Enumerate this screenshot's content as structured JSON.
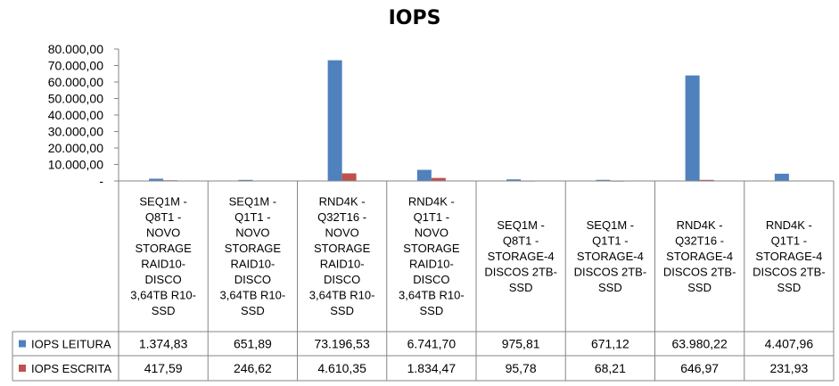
{
  "chart_data": {
    "type": "bar",
    "title": "IOPS",
    "categories": [
      [
        "SEQ1M -",
        "Q8T1 -",
        "NOVO",
        "STORAGE",
        "RAID10-",
        "DISCO",
        "3,64TB R10-",
        "SSD"
      ],
      [
        "SEQ1M -",
        "Q1T1 -",
        "NOVO",
        "STORAGE",
        "RAID10-",
        "DISCO",
        "3,64TB R10-",
        "SSD"
      ],
      [
        "RND4K -",
        "Q32T16 -",
        "NOVO",
        "STORAGE",
        "RAID10-",
        "DISCO",
        "3,64TB R10-",
        "SSD"
      ],
      [
        "RND4K -",
        "Q1T1 -",
        "NOVO",
        "STORAGE",
        "RAID10-",
        "DISCO",
        "3,64TB R10-",
        "SSD"
      ],
      [
        "SEQ1M -",
        "Q8T1 -",
        "STORAGE-4",
        "DISCOS 2TB-",
        "SSD"
      ],
      [
        "SEQ1M -",
        "Q1T1 -",
        "STORAGE-4",
        "DISCOS 2TB-",
        "SSD"
      ],
      [
        "RND4K -",
        "Q32T16 -",
        "STORAGE-4",
        "DISCOS 2TB-",
        "SSD"
      ],
      [
        "RND4K -",
        "Q1T1 -",
        "STORAGE-4",
        "DISCOS 2TB-",
        "SSD"
      ]
    ],
    "series": [
      {
        "name": "IOPS LEITURA",
        "color": "#4F81BD",
        "values": [
          1374.83,
          651.89,
          73196.53,
          6741.7,
          975.81,
          671.12,
          63980.22,
          4407.96
        ],
        "labels": [
          "1.374,83",
          "651,89",
          "73.196,53",
          "6.741,70",
          "975,81",
          "671,12",
          "63.980,22",
          "4.407,96"
        ]
      },
      {
        "name": "IOPS ESCRITA",
        "color": "#C0504D",
        "values": [
          417.59,
          246.62,
          4610.35,
          1834.47,
          95.78,
          68.21,
          646.97,
          231.93
        ],
        "labels": [
          "417,59",
          "246,62",
          "4.610,35",
          "1.834,47",
          "95,78",
          "68,21",
          "646,97",
          "231,93"
        ]
      }
    ],
    "ylim": [
      0,
      80000
    ],
    "yticks": [
      0,
      10000,
      20000,
      30000,
      40000,
      50000,
      60000,
      70000,
      80000
    ],
    "ytick_labels": [
      "-",
      "10.000,00",
      "20.000,00",
      "30.000,00",
      "40.000,00",
      "50.000,00",
      "60.000,00",
      "70.000,00",
      "80.000,00"
    ],
    "grid": false,
    "legend": "data-table"
  }
}
